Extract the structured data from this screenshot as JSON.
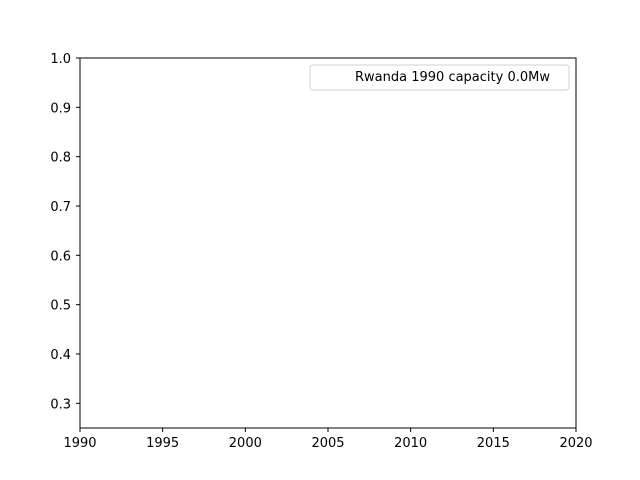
{
  "chart_data": {
    "type": "line",
    "title": "",
    "xlabel": "",
    "ylabel": "",
    "xlim": [
      1990,
      2020
    ],
    "ylim": [
      0.25,
      1.0
    ],
    "x_ticks": [
      "1990",
      "1995",
      "2000",
      "2005",
      "2010",
      "2015",
      "2020"
    ],
    "y_ticks": [
      "0.3",
      "0.4",
      "0.5",
      "0.6",
      "0.7",
      "0.8",
      "0.9",
      "1.0"
    ],
    "grid": false,
    "legend_position": "top-right",
    "series": [
      {
        "name": "Rwanda 1990 capacity 0.0Mw",
        "x": [],
        "y": []
      }
    ]
  }
}
